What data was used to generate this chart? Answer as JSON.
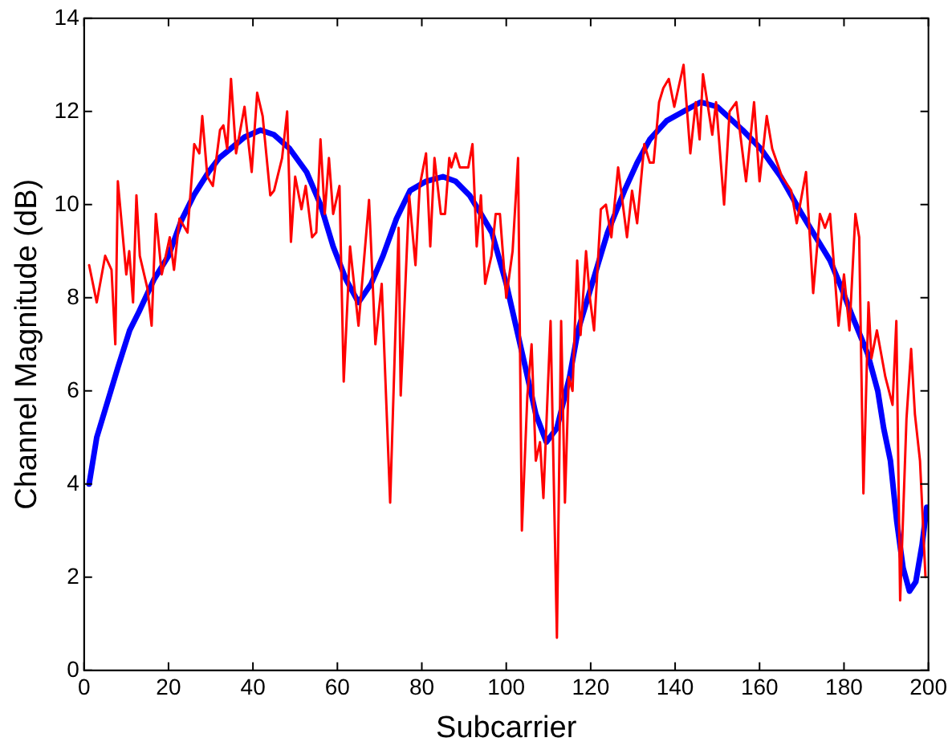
{
  "chart_data": {
    "type": "line",
    "xlabel": "Subcarrier",
    "ylabel": "Channel Magnitude (dB)",
    "xlim": [
      0,
      200
    ],
    "xticks": [
      0,
      20,
      40,
      60,
      80,
      100,
      120,
      140,
      160,
      180,
      200
    ],
    "ylim": [
      0,
      14
    ],
    "yticks": [
      0,
      2,
      4,
      6,
      8,
      10,
      12,
      14
    ],
    "grid": false,
    "legend": false,
    "marker": "none",
    "line_style": "solid",
    "series": [
      {
        "color": "#ff0000",
        "x": [
          1.2,
          3,
          5,
          6.5,
          7.4,
          8,
          10,
          10.7,
          11.6,
          12.4,
          13.2,
          15,
          16,
          17,
          18.4,
          20.3,
          21.3,
          22.6,
          24.5,
          26.1,
          27.3,
          28,
          29.2,
          30.5,
          32.2,
          33,
          33.9,
          34.8,
          36,
          38,
          39.7,
          41,
          42.3,
          44.1,
          45,
          46.9,
          48.1,
          49,
          50,
          51.5,
          52.5,
          54,
          55,
          56,
          57,
          58,
          59,
          60.5,
          61.5,
          63,
          65,
          67.5,
          69,
          70.5,
          72.5,
          74.5,
          75,
          77,
          78.5,
          79.5,
          81,
          82,
          83,
          84.5,
          85.5,
          86.5,
          87,
          88,
          89,
          91,
          92,
          93,
          94,
          95,
          96.5,
          97.5,
          98.5,
          100,
          101.5,
          102.8,
          103.7,
          105,
          106,
          107,
          108,
          108.8,
          110.5,
          112,
          113,
          113.9,
          114.8,
          115.7,
          116.8,
          117.6,
          118.9,
          119.8,
          120.8,
          122.4,
          123.6,
          124.9,
          126.5,
          128.6,
          129.8,
          131,
          132.7,
          134,
          134.9,
          136.2,
          137.2,
          138.5,
          139.8,
          142,
          143.6,
          144.9,
          145.8,
          146.6,
          148.8,
          149.7,
          151.6,
          152.9,
          154.5,
          156.8,
          158.7,
          160,
          161.7,
          163,
          165.3,
          167.5,
          168.8,
          171,
          172.7,
          174.3,
          175.5,
          176.7,
          178.7,
          180,
          181.3,
          182.7,
          183.6,
          184.6,
          185.8,
          186.5,
          187.8,
          189.8,
          191.5,
          192.4,
          193.3,
          194.8,
          195.9,
          196.8,
          198,
          199.3
        ],
        "values": [
          8.7,
          7.9,
          8.9,
          8.6,
          7.0,
          10.5,
          8.5,
          9.0,
          7.9,
          10.2,
          8.9,
          8.2,
          7.4,
          9.8,
          8.5,
          9.3,
          8.6,
          9.7,
          9.4,
          11.3,
          11.1,
          11.9,
          10.6,
          10.4,
          11.6,
          11.7,
          11.2,
          12.7,
          11.1,
          12.1,
          10.7,
          12.4,
          11.9,
          10.2,
          10.3,
          11.0,
          12.0,
          9.2,
          10.6,
          9.9,
          10.4,
          9.3,
          9.4,
          11.4,
          9.8,
          11.0,
          9.8,
          10.4,
          6.2,
          9.1,
          7.4,
          10.1,
          7.0,
          8.3,
          3.6,
          9.5,
          5.9,
          10.2,
          8.7,
          10.4,
          11.1,
          9.1,
          11.0,
          9.8,
          9.8,
          11.0,
          10.8,
          11.1,
          10.8,
          10.8,
          11.3,
          9.1,
          10.2,
          8.3,
          8.9,
          9.8,
          9.8,
          8.0,
          9.0,
          11.0,
          3.0,
          5.9,
          7.0,
          4.5,
          4.9,
          3.7,
          7.5,
          0.7,
          7.5,
          3.6,
          6.3,
          6.0,
          8.8,
          7.2,
          9.0,
          8.0,
          7.3,
          9.9,
          10.0,
          9.3,
          10.8,
          9.3,
          10.3,
          9.6,
          11.3,
          10.9,
          10.9,
          12.2,
          12.5,
          12.7,
          12.1,
          13.0,
          11.1,
          12.2,
          11.4,
          12.8,
          11.5,
          12.2,
          10.0,
          12.0,
          12.2,
          10.5,
          12.2,
          10.5,
          11.9,
          11.2,
          10.6,
          10.3,
          9.6,
          10.7,
          8.1,
          9.8,
          9.5,
          9.8,
          7.4,
          8.5,
          7.3,
          9.8,
          9.3,
          3.8,
          7.9,
          6.7,
          7.3,
          6.3,
          5.7,
          7.5,
          1.5,
          5.4,
          6.9,
          5.5,
          4.5,
          2.0
        ]
      },
      {
        "color": "#0000ff",
        "x": [
          1.2,
          3,
          5,
          8,
          10.8,
          13,
          16.6,
          20,
          23,
          26,
          29.5,
          32,
          34.7,
          38,
          41.8,
          45,
          48.7,
          52.7,
          56,
          59,
          62,
          65,
          68,
          70.8,
          74,
          77.2,
          81,
          85,
          88,
          91.3,
          94,
          96.6,
          100,
          104.3,
          107,
          109.5,
          112,
          115,
          117,
          121,
          124,
          128,
          131,
          134,
          138,
          142,
          146,
          150,
          156,
          160.3,
          165,
          170,
          176.7,
          179,
          182,
          185.6,
          188,
          189.4,
          191,
          192.5,
          194,
          195.5,
          197,
          198.5,
          199.6
        ],
        "values": [
          4.0,
          5.0,
          5.6,
          6.5,
          7.3,
          7.7,
          8.4,
          8.9,
          9.65,
          10.2,
          10.7,
          11.0,
          11.2,
          11.45,
          11.6,
          11.5,
          11.2,
          10.7,
          10.0,
          9.1,
          8.4,
          7.9,
          8.3,
          8.9,
          9.7,
          10.3,
          10.5,
          10.6,
          10.5,
          10.2,
          9.8,
          9.4,
          8.3,
          6.6,
          5.5,
          4.9,
          5.2,
          6.3,
          7.3,
          8.5,
          9.4,
          10.3,
          10.9,
          11.4,
          11.8,
          12.0,
          12.2,
          12.1,
          11.6,
          11.2,
          10.6,
          9.8,
          8.8,
          8.3,
          7.6,
          6.8,
          6.0,
          5.2,
          4.5,
          3.2,
          2.2,
          1.7,
          1.9,
          2.7,
          3.5
        ]
      }
    ]
  }
}
